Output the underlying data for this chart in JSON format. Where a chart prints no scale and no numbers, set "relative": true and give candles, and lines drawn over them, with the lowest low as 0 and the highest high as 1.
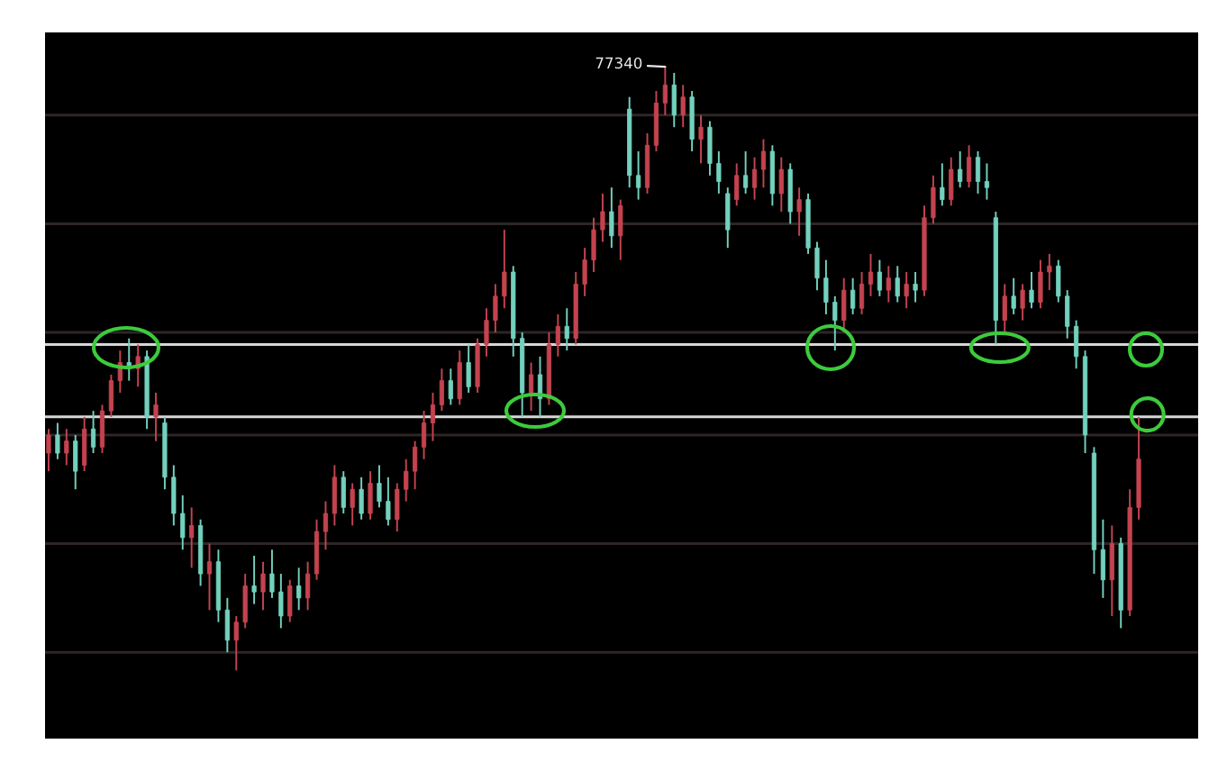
{
  "chart_data": {
    "type": "candlestick",
    "relative": true,
    "categories": [
      null,
      null,
      null,
      null,
      null,
      null,
      null,
      null,
      null,
      null,
      null,
      null,
      null,
      null,
      null,
      null,
      null,
      null,
      null,
      null,
      null,
      null,
      null,
      null,
      null,
      null,
      null,
      null,
      null,
      null,
      null,
      null,
      null,
      null,
      null,
      null,
      null,
      null,
      null,
      null,
      null,
      null,
      null,
      null,
      null,
      null,
      null,
      null,
      null,
      null,
      null,
      null,
      null,
      null,
      null,
      null,
      null,
      null,
      null,
      null,
      null,
      null,
      null,
      null,
      null,
      null,
      null,
      null,
      null,
      null,
      null,
      null,
      null,
      null,
      null,
      null,
      null,
      null,
      null,
      null,
      null,
      null,
      null,
      null,
      null,
      null,
      null,
      null,
      null,
      null,
      null,
      null,
      null,
      null,
      null,
      null,
      null,
      null,
      null,
      null,
      null,
      null,
      null,
      null,
      null,
      null,
      null,
      null,
      null,
      null,
      null,
      null,
      null,
      null,
      null,
      null,
      null,
      null,
      null,
      null,
      null,
      null,
      null
    ],
    "ohlc": [
      [
        0.36,
        0.4,
        0.33,
        0.39
      ],
      [
        0.39,
        0.41,
        0.35,
        0.36
      ],
      [
        0.36,
        0.4,
        0.34,
        0.38
      ],
      [
        0.38,
        0.39,
        0.3,
        0.33
      ],
      [
        0.34,
        0.42,
        0.33,
        0.4
      ],
      [
        0.4,
        0.43,
        0.36,
        0.37
      ],
      [
        0.37,
        0.44,
        0.36,
        0.43
      ],
      [
        0.43,
        0.49,
        0.42,
        0.48
      ],
      [
        0.48,
        0.53,
        0.46,
        0.51
      ],
      [
        0.51,
        0.55,
        0.48,
        0.5
      ],
      [
        0.5,
        0.54,
        0.47,
        0.52
      ],
      [
        0.52,
        0.53,
        0.4,
        0.42
      ],
      [
        0.42,
        0.46,
        0.38,
        0.44
      ],
      [
        0.41,
        0.42,
        0.3,
        0.32
      ],
      [
        0.32,
        0.34,
        0.24,
        0.26
      ],
      [
        0.26,
        0.29,
        0.2,
        0.22
      ],
      [
        0.22,
        0.27,
        0.17,
        0.24
      ],
      [
        0.24,
        0.25,
        0.14,
        0.16
      ],
      [
        0.16,
        0.21,
        0.1,
        0.18
      ],
      [
        0.18,
        0.2,
        0.08,
        0.1
      ],
      [
        0.1,
        0.12,
        0.03,
        0.05
      ],
      [
        0.05,
        0.09,
        0.0,
        0.08
      ],
      [
        0.08,
        0.16,
        0.07,
        0.14
      ],
      [
        0.14,
        0.19,
        0.11,
        0.13
      ],
      [
        0.13,
        0.18,
        0.1,
        0.16
      ],
      [
        0.16,
        0.2,
        0.12,
        0.13
      ],
      [
        0.13,
        0.16,
        0.07,
        0.09
      ],
      [
        0.09,
        0.15,
        0.08,
        0.14
      ],
      [
        0.14,
        0.17,
        0.1,
        0.12
      ],
      [
        0.12,
        0.18,
        0.1,
        0.16
      ],
      [
        0.16,
        0.25,
        0.15,
        0.23
      ],
      [
        0.23,
        0.28,
        0.2,
        0.26
      ],
      [
        0.26,
        0.34,
        0.24,
        0.32
      ],
      [
        0.32,
        0.33,
        0.26,
        0.27
      ],
      [
        0.27,
        0.31,
        0.24,
        0.3
      ],
      [
        0.3,
        0.32,
        0.25,
        0.26
      ],
      [
        0.26,
        0.33,
        0.25,
        0.31
      ],
      [
        0.31,
        0.34,
        0.27,
        0.28
      ],
      [
        0.28,
        0.32,
        0.24,
        0.25
      ],
      [
        0.25,
        0.31,
        0.23,
        0.3
      ],
      [
        0.3,
        0.35,
        0.28,
        0.33
      ],
      [
        0.33,
        0.38,
        0.3,
        0.37
      ],
      [
        0.37,
        0.43,
        0.35,
        0.41
      ],
      [
        0.41,
        0.46,
        0.38,
        0.44
      ],
      [
        0.44,
        0.5,
        0.43,
        0.48
      ],
      [
        0.48,
        0.5,
        0.44,
        0.45
      ],
      [
        0.45,
        0.53,
        0.44,
        0.51
      ],
      [
        0.51,
        0.54,
        0.46,
        0.47
      ],
      [
        0.47,
        0.55,
        0.46,
        0.54
      ],
      [
        0.54,
        0.6,
        0.52,
        0.58
      ],
      [
        0.58,
        0.64,
        0.56,
        0.62
      ],
      [
        0.62,
        0.73,
        0.6,
        0.66
      ],
      [
        0.66,
        0.67,
        0.52,
        0.55
      ],
      [
        0.55,
        0.56,
        0.42,
        0.46
      ],
      [
        0.46,
        0.51,
        0.43,
        0.49
      ],
      [
        0.49,
        0.52,
        0.42,
        0.45
      ],
      [
        0.45,
        0.56,
        0.44,
        0.54
      ],
      [
        0.54,
        0.59,
        0.52,
        0.57
      ],
      [
        0.57,
        0.6,
        0.53,
        0.55
      ],
      [
        0.55,
        0.66,
        0.54,
        0.64
      ],
      [
        0.64,
        0.7,
        0.62,
        0.68
      ],
      [
        0.68,
        0.75,
        0.66,
        0.73
      ],
      [
        0.73,
        0.79,
        0.71,
        0.76
      ],
      [
        0.76,
        0.8,
        0.7,
        0.72
      ],
      [
        0.72,
        0.78,
        0.68,
        0.77
      ],
      [
        0.93,
        0.95,
        0.8,
        0.82
      ],
      [
        0.82,
        0.86,
        0.78,
        0.8
      ],
      [
        0.8,
        0.89,
        0.79,
        0.87
      ],
      [
        0.87,
        0.96,
        0.86,
        0.94
      ],
      [
        0.94,
        1.0,
        0.92,
        0.97
      ],
      [
        0.97,
        0.99,
        0.9,
        0.92
      ],
      [
        0.92,
        0.97,
        0.9,
        0.95
      ],
      [
        0.95,
        0.96,
        0.86,
        0.88
      ],
      [
        0.88,
        0.92,
        0.84,
        0.9
      ],
      [
        0.9,
        0.91,
        0.82,
        0.84
      ],
      [
        0.84,
        0.86,
        0.79,
        0.81
      ],
      [
        0.79,
        0.8,
        0.7,
        0.73
      ],
      [
        0.78,
        0.84,
        0.77,
        0.82
      ],
      [
        0.82,
        0.86,
        0.79,
        0.8
      ],
      [
        0.8,
        0.85,
        0.78,
        0.83
      ],
      [
        0.83,
        0.88,
        0.8,
        0.86
      ],
      [
        0.86,
        0.87,
        0.77,
        0.79
      ],
      [
        0.79,
        0.85,
        0.76,
        0.83
      ],
      [
        0.83,
        0.84,
        0.74,
        0.76
      ],
      [
        0.76,
        0.8,
        0.72,
        0.78
      ],
      [
        0.78,
        0.79,
        0.69,
        0.7
      ],
      [
        0.7,
        0.71,
        0.63,
        0.65
      ],
      [
        0.65,
        0.68,
        0.59,
        0.61
      ],
      [
        0.61,
        0.62,
        0.53,
        0.58
      ],
      [
        0.58,
        0.65,
        0.56,
        0.63
      ],
      [
        0.63,
        0.65,
        0.59,
        0.6
      ],
      [
        0.6,
        0.66,
        0.59,
        0.64
      ],
      [
        0.64,
        0.69,
        0.62,
        0.66
      ],
      [
        0.66,
        0.68,
        0.62,
        0.63
      ],
      [
        0.63,
        0.67,
        0.61,
        0.65
      ],
      [
        0.65,
        0.67,
        0.61,
        0.62
      ],
      [
        0.62,
        0.66,
        0.6,
        0.64
      ],
      [
        0.64,
        0.66,
        0.61,
        0.63
      ],
      [
        0.63,
        0.77,
        0.62,
        0.75
      ],
      [
        0.75,
        0.82,
        0.74,
        0.8
      ],
      [
        0.8,
        0.84,
        0.77,
        0.78
      ],
      [
        0.78,
        0.85,
        0.77,
        0.83
      ],
      [
        0.83,
        0.86,
        0.8,
        0.81
      ],
      [
        0.81,
        0.87,
        0.8,
        0.85
      ],
      [
        0.85,
        0.86,
        0.79,
        0.81
      ],
      [
        0.81,
        0.84,
        0.78,
        0.8
      ],
      [
        0.75,
        0.76,
        0.54,
        0.58
      ],
      [
        0.58,
        0.64,
        0.56,
        0.62
      ],
      [
        0.62,
        0.65,
        0.59,
        0.6
      ],
      [
        0.6,
        0.64,
        0.58,
        0.63
      ],
      [
        0.63,
        0.66,
        0.6,
        0.61
      ],
      [
        0.61,
        0.68,
        0.6,
        0.66
      ],
      [
        0.66,
        0.69,
        0.63,
        0.67
      ],
      [
        0.67,
        0.68,
        0.61,
        0.62
      ],
      [
        0.62,
        0.63,
        0.55,
        0.57
      ],
      [
        0.57,
        0.58,
        0.5,
        0.52
      ],
      [
        0.52,
        0.53,
        0.36,
        0.39
      ],
      [
        0.36,
        0.37,
        0.16,
        0.2
      ],
      [
        0.2,
        0.25,
        0.12,
        0.15
      ],
      [
        0.15,
        0.24,
        0.09,
        0.21
      ],
      [
        0.21,
        0.22,
        0.07,
        0.1
      ],
      [
        0.1,
        0.3,
        0.09,
        0.27
      ],
      [
        0.27,
        0.42,
        0.25,
        0.35
      ]
    ],
    "colors": [
      "#c4434f",
      "#72d1bd",
      "#c4434f",
      "#72d1bd",
      "#c4434f",
      "#72d1bd",
      "#c4434f",
      "#c4434f",
      "#c4434f",
      "#72d1bd",
      "#c4434f",
      "#72d1bd",
      "#c4434f",
      "#72d1bd",
      "#72d1bd",
      "#72d1bd",
      "#c4434f",
      "#72d1bd",
      "#c4434f",
      "#72d1bd",
      "#72d1bd",
      "#c4434f",
      "#c4434f",
      "#72d1bd",
      "#c4434f",
      "#72d1bd",
      "#72d1bd",
      "#c4434f",
      "#72d1bd",
      "#c4434f",
      "#c4434f",
      "#c4434f",
      "#c4434f",
      "#72d1bd",
      "#c4434f",
      "#72d1bd",
      "#c4434f",
      "#72d1bd",
      "#72d1bd",
      "#c4434f",
      "#c4434f",
      "#c4434f",
      "#c4434f",
      "#c4434f",
      "#c4434f",
      "#72d1bd",
      "#c4434f",
      "#72d1bd",
      "#c4434f",
      "#c4434f",
      "#c4434f",
      "#c4434f",
      "#72d1bd",
      "#72d1bd",
      "#c4434f",
      "#72d1bd",
      "#c4434f",
      "#c4434f",
      "#72d1bd",
      "#c4434f",
      "#c4434f",
      "#c4434f",
      "#c4434f",
      "#72d1bd",
      "#c4434f",
      "#72d1bd",
      "#72d1bd",
      "#c4434f",
      "#c4434f",
      "#c4434f",
      "#72d1bd",
      "#c4434f",
      "#72d1bd",
      "#c4434f",
      "#72d1bd",
      "#72d1bd",
      "#72d1bd",
      "#c4434f",
      "#72d1bd",
      "#c4434f",
      "#c4434f",
      "#72d1bd",
      "#c4434f",
      "#72d1bd",
      "#c4434f",
      "#72d1bd",
      "#72d1bd",
      "#72d1bd",
      "#72d1bd",
      "#c4434f",
      "#72d1bd",
      "#c4434f",
      "#c4434f",
      "#72d1bd",
      "#c4434f",
      "#72d1bd",
      "#c4434f",
      "#72d1bd",
      "#c4434f",
      "#c4434f",
      "#72d1bd",
      "#c4434f",
      "#72d1bd",
      "#c4434f",
      "#72d1bd",
      "#72d1bd",
      "#72d1bd",
      "#c4434f",
      "#72d1bd",
      "#c4434f",
      "#72d1bd",
      "#c4434f",
      "#c4434f",
      "#72d1bd",
      "#72d1bd",
      "#72d1bd",
      "#72d1bd",
      "#72d1bd",
      "#72d1bd",
      "#c4434f",
      "#72d1bd",
      "#c4434f",
      "#c4434f"
    ],
    "ref_lines": [
      {
        "axis": "y",
        "value": 0.92,
        "color": "#2e2526"
      },
      {
        "axis": "y",
        "value": 0.74,
        "color": "#2e2526"
      },
      {
        "axis": "y",
        "value": 0.56,
        "color": "#2e2526"
      },
      {
        "axis": "y",
        "value": 0.39,
        "color": "#2e2526"
      },
      {
        "axis": "y",
        "value": 0.21,
        "color": "#2e2526"
      },
      {
        "axis": "y",
        "value": 0.03,
        "color": "#2e2526"
      },
      {
        "axis": "y",
        "value": 0.54,
        "color": "#d6d6d6"
      },
      {
        "axis": "y",
        "value": 0.42,
        "color": "#d6d6d6"
      }
    ],
    "annotations": [
      "77340"
    ]
  }
}
